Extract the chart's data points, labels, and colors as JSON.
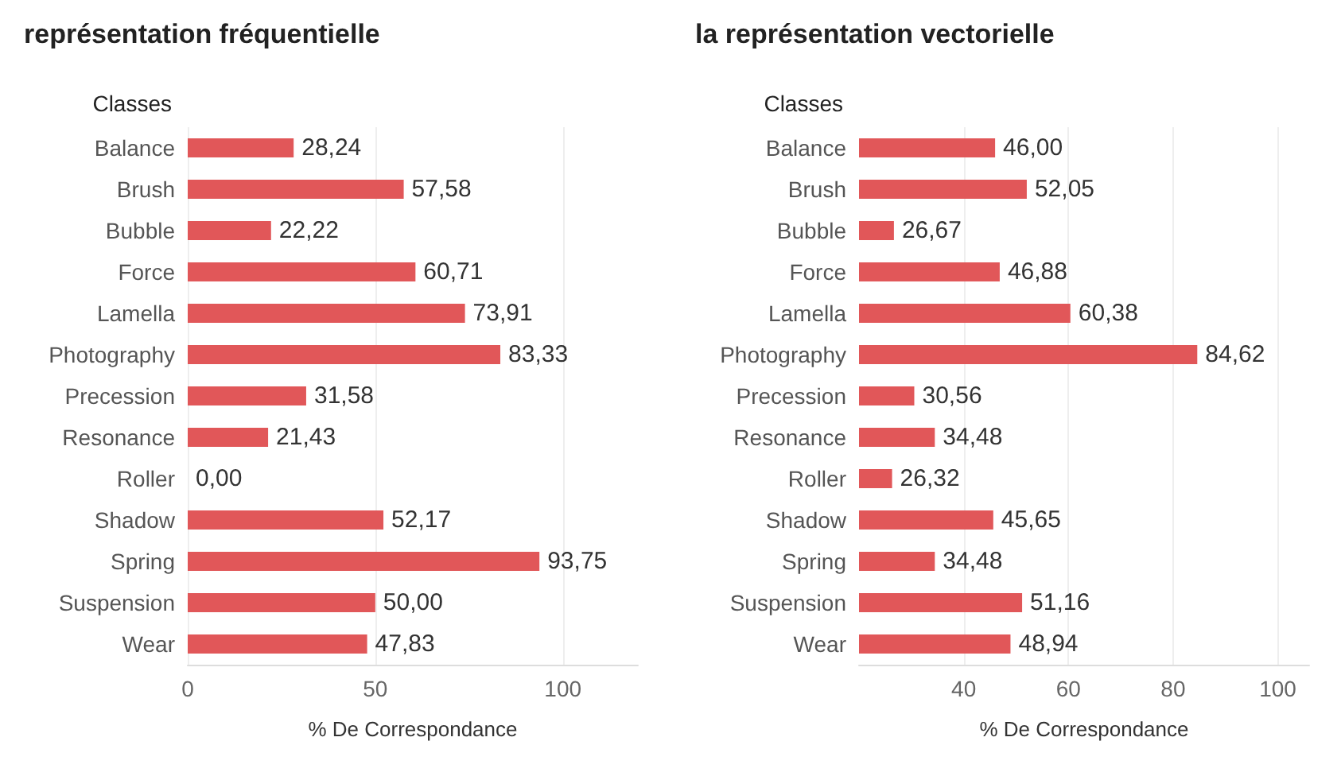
{
  "chart_data": [
    {
      "type": "bar",
      "orientation": "horizontal",
      "title": "représentation fréquentielle",
      "xlabel": "% De Correspondance",
      "ylabel": "Classes",
      "categories": [
        "Balance",
        "Brush",
        "Bubble",
        "Force",
        "Lamella",
        "Photography",
        "Precession",
        "Resonance",
        "Roller",
        "Shadow",
        "Spring",
        "Suspension",
        "Wear"
      ],
      "values": [
        28.24,
        57.58,
        22.22,
        60.71,
        73.91,
        83.33,
        31.58,
        21.43,
        0,
        52.17,
        93.75,
        50,
        47.83
      ],
      "value_labels": [
        "28,24",
        "57,58",
        "22,22",
        "60,71",
        "73,91",
        "83,33",
        "31,58",
        "21,43",
        "0,00",
        "52,17",
        "93,75",
        "50,00",
        "47,83"
      ],
      "color": "#e15759",
      "xlim": [
        0,
        120
      ],
      "xticks": [
        0,
        50,
        100
      ],
      "grid": "x"
    },
    {
      "type": "bar",
      "orientation": "horizontal",
      "title": "la représentation vectorielle",
      "xlabel": "% De Correspondance",
      "ylabel": "Classes",
      "categories": [
        "Balance",
        "Brush",
        "Bubble",
        "Force",
        "Lamella",
        "Photography",
        "Precession",
        "Resonance",
        "Roller",
        "Shadow",
        "Spring",
        "Suspension",
        "Wear"
      ],
      "values": [
        46,
        52.05,
        26.67,
        46.88,
        60.38,
        84.62,
        30.56,
        34.48,
        26.32,
        45.65,
        34.48,
        51.16,
        48.94
      ],
      "value_labels": [
        "46,00",
        "52,05",
        "26,67",
        "46,88",
        "60,38",
        "84,62",
        "30,56",
        "34,48",
        "26,32",
        "45,65",
        "34,48",
        "51,16",
        "48,94"
      ],
      "color": "#e15759",
      "xlim": [
        20,
        106
      ],
      "xticks": [
        40,
        60,
        80,
        100
      ],
      "grid": "x"
    }
  ]
}
